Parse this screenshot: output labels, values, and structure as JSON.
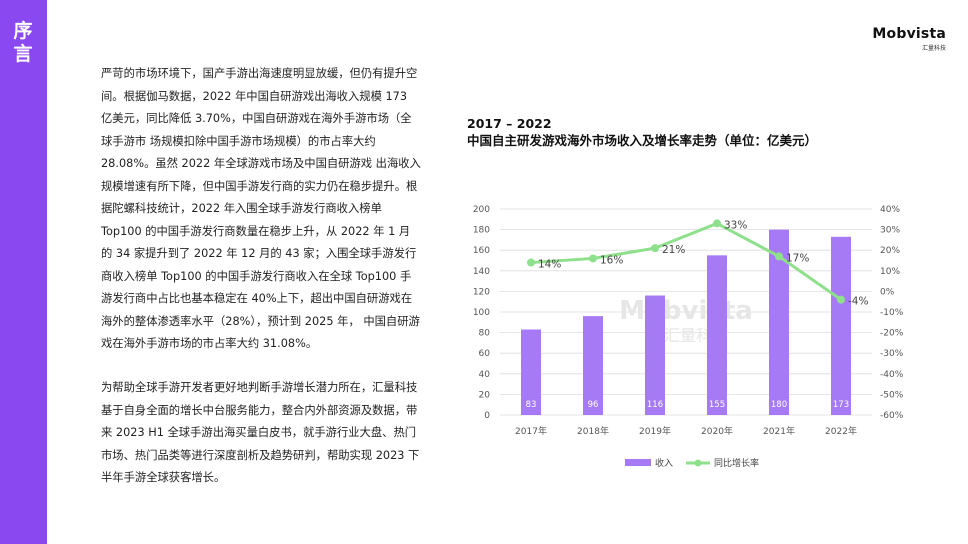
{
  "sidebar": {
    "title": "序言"
  },
  "logo": {
    "brand": "Mobvista",
    "sub": "汇量科技"
  },
  "body": {
    "paragraph1": "严苛的市场环境下，国产手游出海速度明显放缓，但仍有提升空间。根据伽马数据，2022 年中国自研游戏出海收入规模 173 亿美元，同比降低 3.70%，中国自研游戏在海外手游市场（全球手游市 场规模扣除中国手游市场规模）的市占率大约 28.08%。虽然 2022 年全球游戏市场及中国自研游戏 出海收入规模增速有所下降，但中国手游发行商的实力仍在稳步提升。根据陀螺科技统计，2022 年入围全球手游发行商收入榜单 Top100 的中国手游发行商数量在稳步上升，从 2022 年 1 月的 34 家提升到了 2022 年 12 月的 43 家；入围全球手游发行商收入榜单 Top100 的中国手游发行商收入在全球 Top100 手游发行商中占比也基本稳定在 40%上下，超出中国自研游戏在海外的整体渗透率水平（28%），预计到 2025 年， 中国自研游戏在海外手游市场的市占率大约 31.08%。",
    "paragraph2": "为帮助全球手游开发者更好地判断手游增长潜力所在，汇量科技基于自身全面的增长中台服务能力，整合内外部资源及数据，带来 2023 H1 全球手游出海买量白皮书，就手游行业大盘、热门市场、热门品类等进行深度剖析及趋势研判，帮助实现 2023 下半年手游全球获客增长。"
  },
  "chart_data": {
    "type": "bar+line",
    "title_line1": "2017 – 2022",
    "title_line2": "中国自主研发游戏海外市场收入及增长率走势（单位：亿美元）",
    "categories": [
      "2017年",
      "2018年",
      "2019年",
      "2020年",
      "2021年",
      "2022年"
    ],
    "series": [
      {
        "name": "收入",
        "type": "bar",
        "axis": "left",
        "values": [
          83,
          96,
          116,
          155,
          180,
          173
        ],
        "labels": [
          "83",
          "96",
          "116",
          "155",
          "180",
          "173"
        ]
      },
      {
        "name": "同比增长率",
        "type": "line",
        "axis": "right",
        "values": [
          14,
          16,
          21,
          33,
          17,
          -4
        ],
        "labels": [
          "14%",
          "16%",
          "21%",
          "33%",
          "17%",
          "-4%"
        ]
      }
    ],
    "left_axis": {
      "range": [
        0,
        200
      ],
      "ticks": [
        "0",
        "20",
        "40",
        "60",
        "80",
        "100",
        "120",
        "140",
        "160",
        "180",
        "200"
      ]
    },
    "right_axis": {
      "range": [
        -60,
        40
      ],
      "ticks": [
        "-60%",
        "-50%",
        "-40%",
        "-30%",
        "-20%",
        "-10%",
        "0%",
        "10%",
        "20%",
        "30%",
        "40%"
      ]
    },
    "grid": true,
    "legend": "bottom",
    "watermark": "Mobvista 汇量科技",
    "colors": {
      "bar": "#a57af4",
      "line": "#8fe08c",
      "grid": "#dddddd"
    }
  }
}
